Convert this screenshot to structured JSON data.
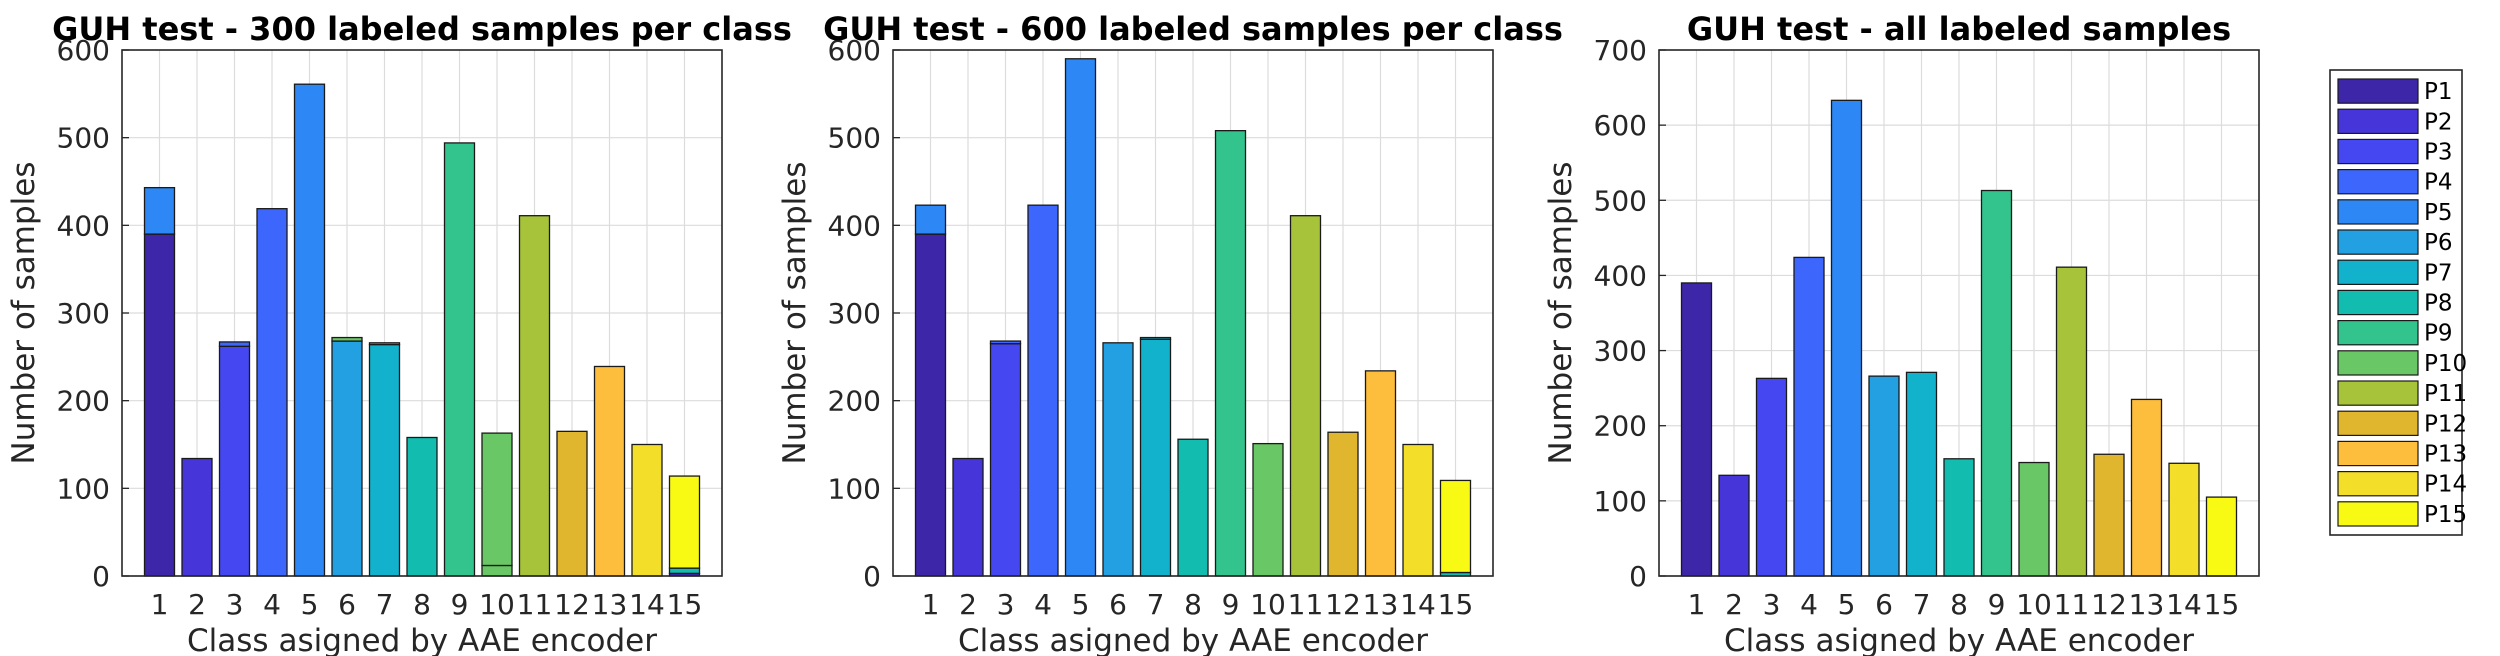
{
  "figure": {
    "background": "#ffffff"
  },
  "chart_data": [
    {
      "type": "bar",
      "stacked": true,
      "title": "GUH test - 300 labeled samples per class",
      "xlabel": "Class asigned by AAE encoder",
      "ylabel": "Number of samples",
      "ylim": [
        0,
        600
      ],
      "yticks": [
        0,
        100,
        200,
        300,
        400,
        500,
        600
      ],
      "grid": true,
      "categories": [
        "1",
        "2",
        "3",
        "4",
        "5",
        "6",
        "7",
        "8",
        "9",
        "10",
        "11",
        "12",
        "13",
        "14",
        "15"
      ],
      "stacks": [
        [
          {
            "s": 1,
            "v": 390
          },
          {
            "s": 5,
            "v": 53
          }
        ],
        [
          {
            "s": 2,
            "v": 134
          }
        ],
        [
          {
            "s": 3,
            "v": 262
          },
          {
            "s": 4,
            "v": 5
          }
        ],
        [
          {
            "s": 4,
            "v": 419
          }
        ],
        [
          {
            "s": 5,
            "v": 561
          }
        ],
        [
          {
            "s": 6,
            "v": 268
          },
          {
            "s": 10,
            "v": 4
          }
        ],
        [
          {
            "s": 7,
            "v": 264
          },
          {
            "s": 10,
            "v": 2
          }
        ],
        [
          {
            "s": 8,
            "v": 158
          }
        ],
        [
          {
            "s": 9,
            "v": 494
          }
        ],
        [
          {
            "s": 10,
            "v": 12
          },
          {
            "s": 10,
            "v": 151
          }
        ],
        [
          {
            "s": 11,
            "v": 411
          }
        ],
        [
          {
            "s": 12,
            "v": 165
          }
        ],
        [
          {
            "s": 13,
            "v": 239
          }
        ],
        [
          {
            "s": 14,
            "v": 150
          }
        ],
        [
          {
            "s": 1,
            "v": 3
          },
          {
            "s": 8,
            "v": 6
          },
          {
            "s": 15,
            "v": 105
          }
        ]
      ]
    },
    {
      "type": "bar",
      "stacked": true,
      "title": "GUH test - 600 labeled samples per class",
      "xlabel": "Class asigned by AAE encoder",
      "ylabel": "Number of samples",
      "ylim": [
        0,
        600
      ],
      "yticks": [
        0,
        100,
        200,
        300,
        400,
        500,
        600
      ],
      "grid": true,
      "categories": [
        "1",
        "2",
        "3",
        "4",
        "5",
        "6",
        "7",
        "8",
        "9",
        "10",
        "11",
        "12",
        "13",
        "14",
        "15"
      ],
      "stacks": [
        [
          {
            "s": 1,
            "v": 390
          },
          {
            "s": 5,
            "v": 33
          }
        ],
        [
          {
            "s": 2,
            "v": 134
          }
        ],
        [
          {
            "s": 3,
            "v": 265
          },
          {
            "s": 4,
            "v": 3
          }
        ],
        [
          {
            "s": 4,
            "v": 423
          }
        ],
        [
          {
            "s": 5,
            "v": 590
          }
        ],
        [
          {
            "s": 6,
            "v": 266
          }
        ],
        [
          {
            "s": 7,
            "v": 270
          },
          {
            "s": 7,
            "v": 2
          }
        ],
        [
          {
            "s": 8,
            "v": 156
          }
        ],
        [
          {
            "s": 9,
            "v": 508
          }
        ],
        [
          {
            "s": 10,
            "v": 151
          }
        ],
        [
          {
            "s": 11,
            "v": 411
          }
        ],
        [
          {
            "s": 12,
            "v": 164
          }
        ],
        [
          {
            "s": 13,
            "v": 234
          }
        ],
        [
          {
            "s": 14,
            "v": 150
          }
        ],
        [
          {
            "s": 8,
            "v": 4
          },
          {
            "s": 15,
            "v": 105
          }
        ]
      ]
    },
    {
      "type": "bar",
      "stacked": true,
      "title": "GUH test - all labeled samples",
      "xlabel": "Class asigned by AAE encoder",
      "ylabel": "Number of samples",
      "ylim": [
        0,
        700
      ],
      "yticks": [
        0,
        100,
        200,
        300,
        400,
        500,
        600,
        700
      ],
      "grid": true,
      "categories": [
        "1",
        "2",
        "3",
        "4",
        "5",
        "6",
        "7",
        "8",
        "9",
        "10",
        "11",
        "12",
        "13",
        "14",
        "15"
      ],
      "stacks": [
        [
          {
            "s": 1,
            "v": 390
          }
        ],
        [
          {
            "s": 2,
            "v": 134
          }
        ],
        [
          {
            "s": 3,
            "v": 263
          }
        ],
        [
          {
            "s": 4,
            "v": 424
          }
        ],
        [
          {
            "s": 5,
            "v": 633
          }
        ],
        [
          {
            "s": 6,
            "v": 266
          }
        ],
        [
          {
            "s": 7,
            "v": 271
          }
        ],
        [
          {
            "s": 8,
            "v": 156
          }
        ],
        [
          {
            "s": 9,
            "v": 513
          }
        ],
        [
          {
            "s": 10,
            "v": 151
          }
        ],
        [
          {
            "s": 11,
            "v": 411
          }
        ],
        [
          {
            "s": 12,
            "v": 162
          }
        ],
        [
          {
            "s": 13,
            "v": 235
          }
        ],
        [
          {
            "s": 14,
            "v": 150
          }
        ],
        [
          {
            "s": 15,
            "v": 105
          }
        ]
      ]
    }
  ],
  "legend": {
    "placement": "right",
    "series": [
      {
        "name": "P1",
        "color": "#3d26a8"
      },
      {
        "name": "P2",
        "color": "#4636d9"
      },
      {
        "name": "P3",
        "color": "#4548f1"
      },
      {
        "name": "P4",
        "color": "#3d67fc"
      },
      {
        "name": "P5",
        "color": "#2d87f4"
      },
      {
        "name": "P6",
        "color": "#22a0e2"
      },
      {
        "name": "P7",
        "color": "#12b2cd"
      },
      {
        "name": "P8",
        "color": "#12bdb0"
      },
      {
        "name": "P9",
        "color": "#33c48e"
      },
      {
        "name": "P10",
        "color": "#6ac766"
      },
      {
        "name": "P11",
        "color": "#a6c33a"
      },
      {
        "name": "P12",
        "color": "#e0b62e"
      },
      {
        "name": "P13",
        "color": "#fdbd3d"
      },
      {
        "name": "P14",
        "color": "#f3df2a"
      },
      {
        "name": "P15",
        "color": "#f9fa13"
      }
    ]
  }
}
